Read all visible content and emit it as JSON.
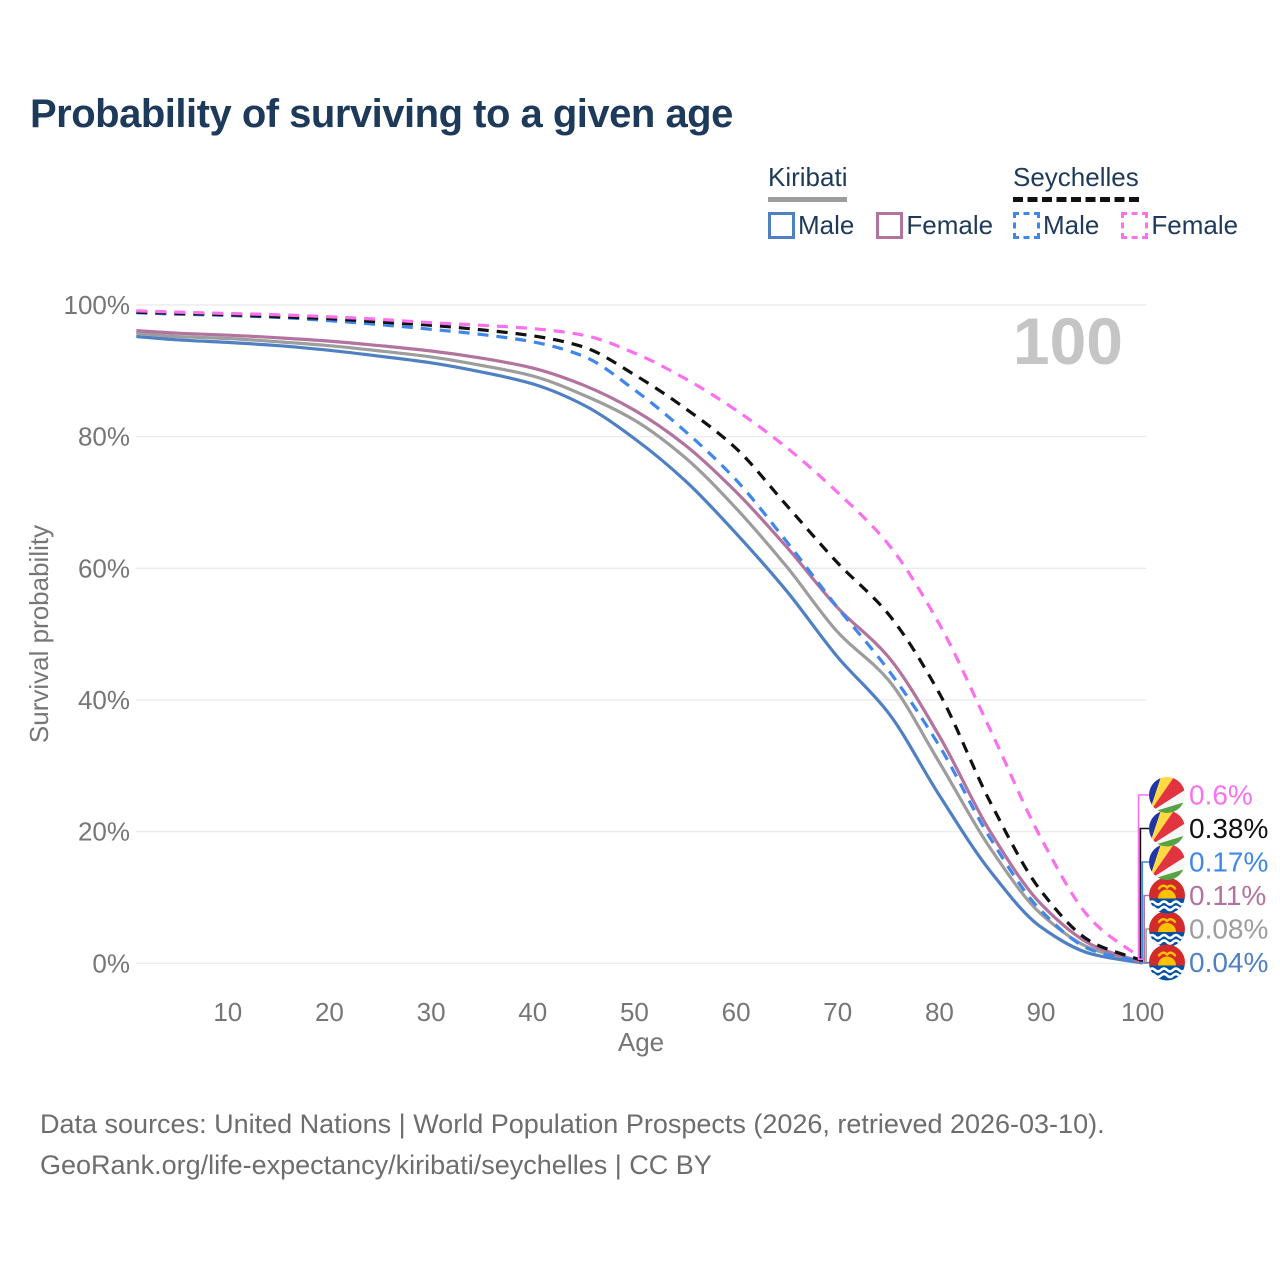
{
  "title": "Probability of surviving to a given age",
  "watermark": "100",
  "legend": {
    "groups": [
      {
        "label": "Kiribati",
        "line_color": "#9d9d9d",
        "line_style": "solid",
        "items": [
          {
            "label": "Male",
            "color": "#4f80c2",
            "box_style": "solid"
          },
          {
            "label": "Female",
            "color": "#b2739f",
            "box_style": "solid"
          }
        ]
      },
      {
        "label": "Seychelles",
        "line_color": "#111111",
        "line_style": "dashed",
        "items": [
          {
            "label": "Male",
            "color": "#3f87ea",
            "box_style": "dashed"
          },
          {
            "label": "Female",
            "color": "#fb70ee",
            "box_style": "dashed"
          }
        ]
      }
    ]
  },
  "chart_data": {
    "type": "line",
    "title": "Probability of surviving to a given age",
    "xlabel": "Age",
    "ylabel": "Survival probability",
    "xlim": [
      1,
      100
    ],
    "ylim": [
      0,
      100
    ],
    "grid": "horizontal",
    "watermark": "100",
    "x_tick_values": [
      10,
      20,
      30,
      40,
      50,
      60,
      70,
      80,
      90,
      100
    ],
    "x_tick_labels": [
      "10",
      "20",
      "30",
      "40",
      "50",
      "60",
      "70",
      "80",
      "90",
      "100"
    ],
    "y_tick_values": [
      0,
      20,
      40,
      60,
      80,
      100
    ],
    "y_tick_labels": [
      "0%",
      "20%",
      "40%",
      "60%",
      "80%",
      "100%"
    ],
    "x": [
      1,
      5,
      10,
      15,
      20,
      25,
      30,
      35,
      40,
      45,
      50,
      55,
      60,
      65,
      70,
      75,
      80,
      85,
      90,
      95,
      100
    ],
    "series": [
      {
        "name": "Kiribati",
        "country": "Kiribati",
        "sex": "all",
        "color": "#9d9d9d",
        "dashed": false,
        "flag": "kiribati-flag-icon",
        "row": 4,
        "end_label": "0.08%",
        "end_value": 0.08,
        "values": [
          95.7,
          95.2,
          94.9,
          94.4,
          93.8,
          93.0,
          92.1,
          90.8,
          89.2,
          86.3,
          82.5,
          76.8,
          69.1,
          60.2,
          50.3,
          43.0,
          30.5,
          17.5,
          7.5,
          2.2,
          0.08
        ]
      },
      {
        "name": "Kiribati Male",
        "country": "Kiribati",
        "sex": "male",
        "color": "#4f80c2",
        "dashed": false,
        "flag": "kiribati-flag-icon",
        "row": 5,
        "end_label": "0.04%",
        "end_value": 0.04,
        "values": [
          95.2,
          94.7,
          94.3,
          93.8,
          93.1,
          92.2,
          91.2,
          89.8,
          88.0,
          84.8,
          79.7,
          73.3,
          65.3,
          56.5,
          46.5,
          38.0,
          25.5,
          14.0,
          5.5,
          1.4,
          0.04
        ]
      },
      {
        "name": "Kiribati Female",
        "country": "Kiribati",
        "sex": "female",
        "color": "#b2739f",
        "dashed": false,
        "flag": "kiribati-flag-icon",
        "row": 3,
        "end_label": "0.11%",
        "end_value": 0.11,
        "values": [
          96.1,
          95.7,
          95.4,
          95.0,
          94.5,
          93.8,
          93.0,
          91.9,
          90.4,
          87.8,
          84.0,
          78.7,
          71.6,
          63.2,
          54.0,
          46.5,
          34.5,
          20.0,
          9.0,
          2.8,
          0.11
        ]
      },
      {
        "name": "Seychelles Male",
        "country": "Seychelles",
        "sex": "male",
        "color": "#3f87ea",
        "dashed": true,
        "flag": "seychelles-flag-icon",
        "row": 2,
        "end_label": "0.17%",
        "end_value": 0.17,
        "values": [
          98.8,
          98.6,
          98.4,
          98.1,
          97.6,
          97.0,
          96.3,
          95.5,
          94.4,
          92.2,
          87.1,
          80.8,
          73.4,
          64.0,
          54.0,
          44.5,
          33.0,
          19.0,
          8.0,
          2.0,
          0.17
        ]
      },
      {
        "name": "Seychelles",
        "country": "Seychelles",
        "sex": "all",
        "color": "#111111",
        "dashed": true,
        "flag": "seychelles-flag-icon",
        "row": 1,
        "end_label": "0.38%",
        "end_value": 0.38,
        "values": [
          98.9,
          98.7,
          98.5,
          98.2,
          97.9,
          97.4,
          96.9,
          96.2,
          95.3,
          93.6,
          89.4,
          84.3,
          78.2,
          69.5,
          60.8,
          53.0,
          41.0,
          24.5,
          11.0,
          3.2,
          0.38
        ]
      },
      {
        "name": "Seychelles Female",
        "country": "Seychelles",
        "sex": "female",
        "color": "#fb70ee",
        "dashed": true,
        "flag": "seychelles-flag-icon",
        "row": 0,
        "end_label": "0.6%",
        "end_value": 0.6,
        "values": [
          99.1,
          98.9,
          98.7,
          98.5,
          98.2,
          97.8,
          97.3,
          96.9,
          96.4,
          95.4,
          92.7,
          88.8,
          84.0,
          78.3,
          71.5,
          63.6,
          51.5,
          35.5,
          19.0,
          6.5,
          0.6
        ]
      }
    ],
    "legend_position": "top-right"
  },
  "footer": {
    "line1": "Data sources: United Nations | World Population Prospects (2026, retrieved 2026-03-10).",
    "line2": "GeoRank.org/life-expectancy/kiribati/seychelles | CC BY"
  },
  "colors": {
    "title_text": "#1d3a5a",
    "tick_text": "#767676",
    "gridline": "#ebebeb",
    "watermark": "#c5c5c5",
    "footer_text": "#6d6d6d"
  }
}
